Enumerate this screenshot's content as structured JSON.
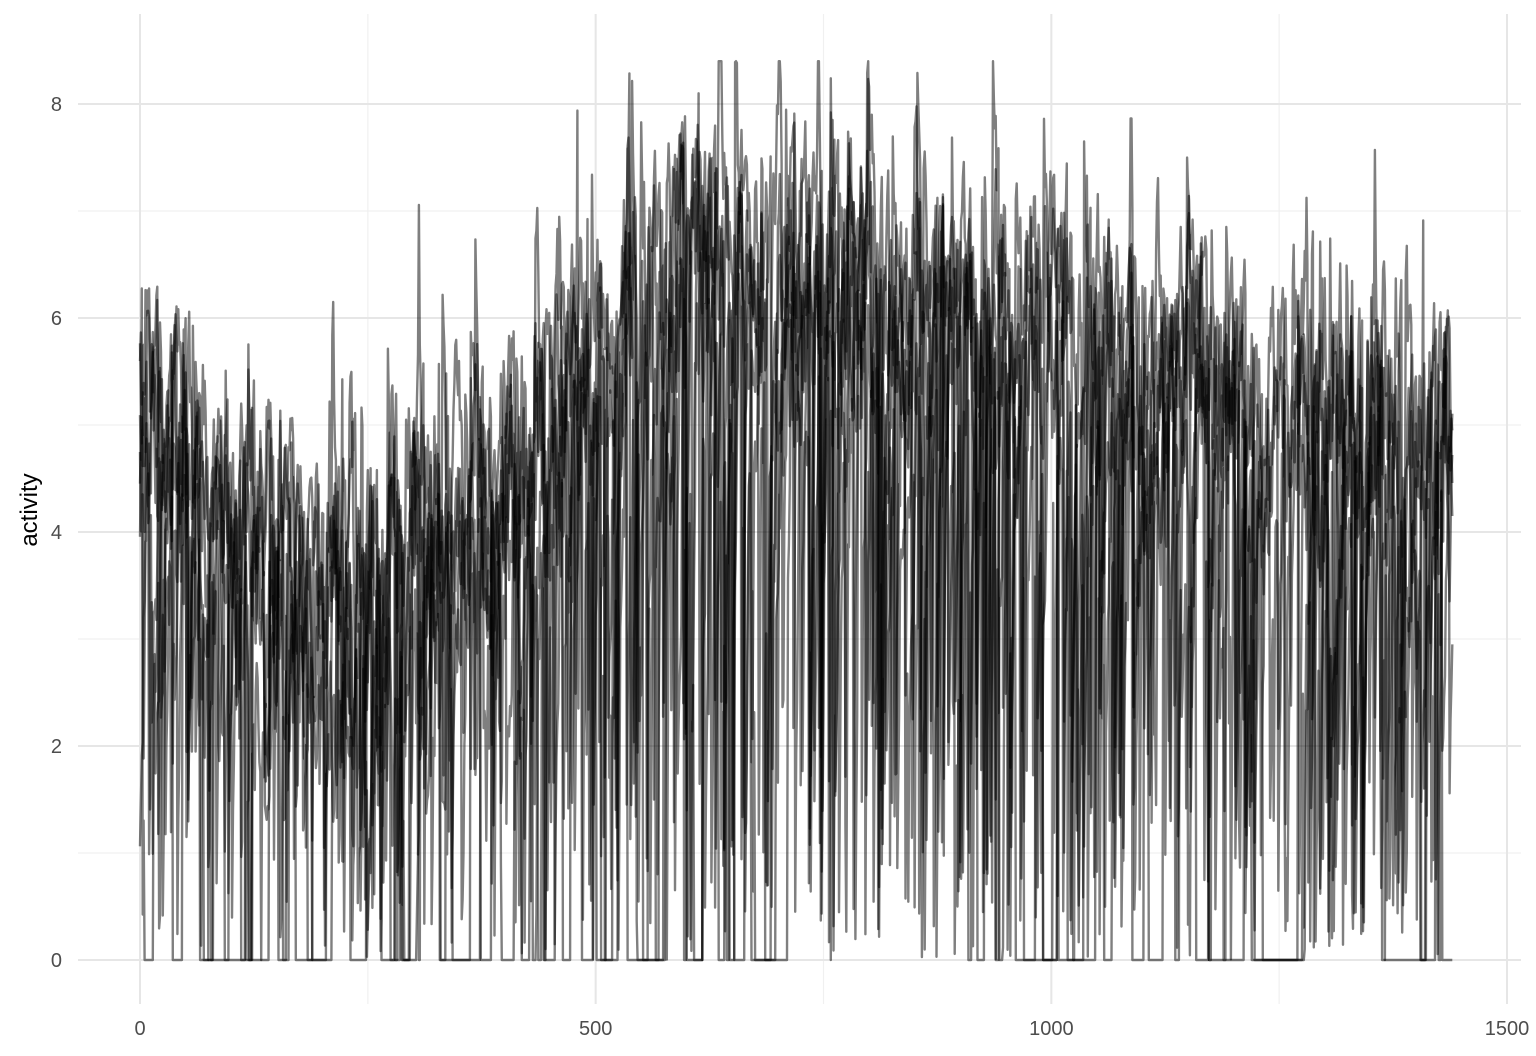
{
  "chart_data": {
    "type": "line",
    "title": "",
    "xlabel": "",
    "ylabel": "activity",
    "xlim": [
      -70,
      1510
    ],
    "ylim": [
      -0.8,
      8.6
    ],
    "x_ticks": [
      0,
      500,
      1000,
      1500
    ],
    "y_ticks": [
      0,
      2,
      4,
      6,
      8
    ],
    "x_tick_labels": [
      "0",
      "500",
      "1000",
      "1500"
    ],
    "y_tick_labels": [
      "0",
      "2",
      "4",
      "6",
      "8"
    ],
    "grid": true,
    "legend": "none",
    "line_color": "#000000",
    "line_opacity": 0.5,
    "series_count": 7,
    "x_range": [
      0,
      1440
    ],
    "typical_profile": [
      {
        "x": 0,
        "y": 4.7
      },
      {
        "x": 60,
        "y": 4.2
      },
      {
        "x": 120,
        "y": 3.5
      },
      {
        "x": 180,
        "y": 3.2
      },
      {
        "x": 240,
        "y": 3.4
      },
      {
        "x": 300,
        "y": 3.8
      },
      {
        "x": 360,
        "y": 4.0
      },
      {
        "x": 420,
        "y": 4.4
      },
      {
        "x": 480,
        "y": 5.2
      },
      {
        "x": 540,
        "y": 6.0
      },
      {
        "x": 600,
        "y": 6.3
      },
      {
        "x": 660,
        "y": 6.1
      },
      {
        "x": 720,
        "y": 6.0
      },
      {
        "x": 780,
        "y": 6.1
      },
      {
        "x": 840,
        "y": 5.9
      },
      {
        "x": 900,
        "y": 5.7
      },
      {
        "x": 960,
        "y": 5.8
      },
      {
        "x": 1020,
        "y": 5.8
      },
      {
        "x": 1080,
        "y": 5.4
      },
      {
        "x": 1140,
        "y": 5.2
      },
      {
        "x": 1200,
        "y": 5.0
      },
      {
        "x": 1260,
        "y": 4.9
      },
      {
        "x": 1320,
        "y": 5.0
      },
      {
        "x": 1380,
        "y": 4.6
      },
      {
        "x": 1440,
        "y": 4.4
      }
    ],
    "peak_max": 8.4
  }
}
